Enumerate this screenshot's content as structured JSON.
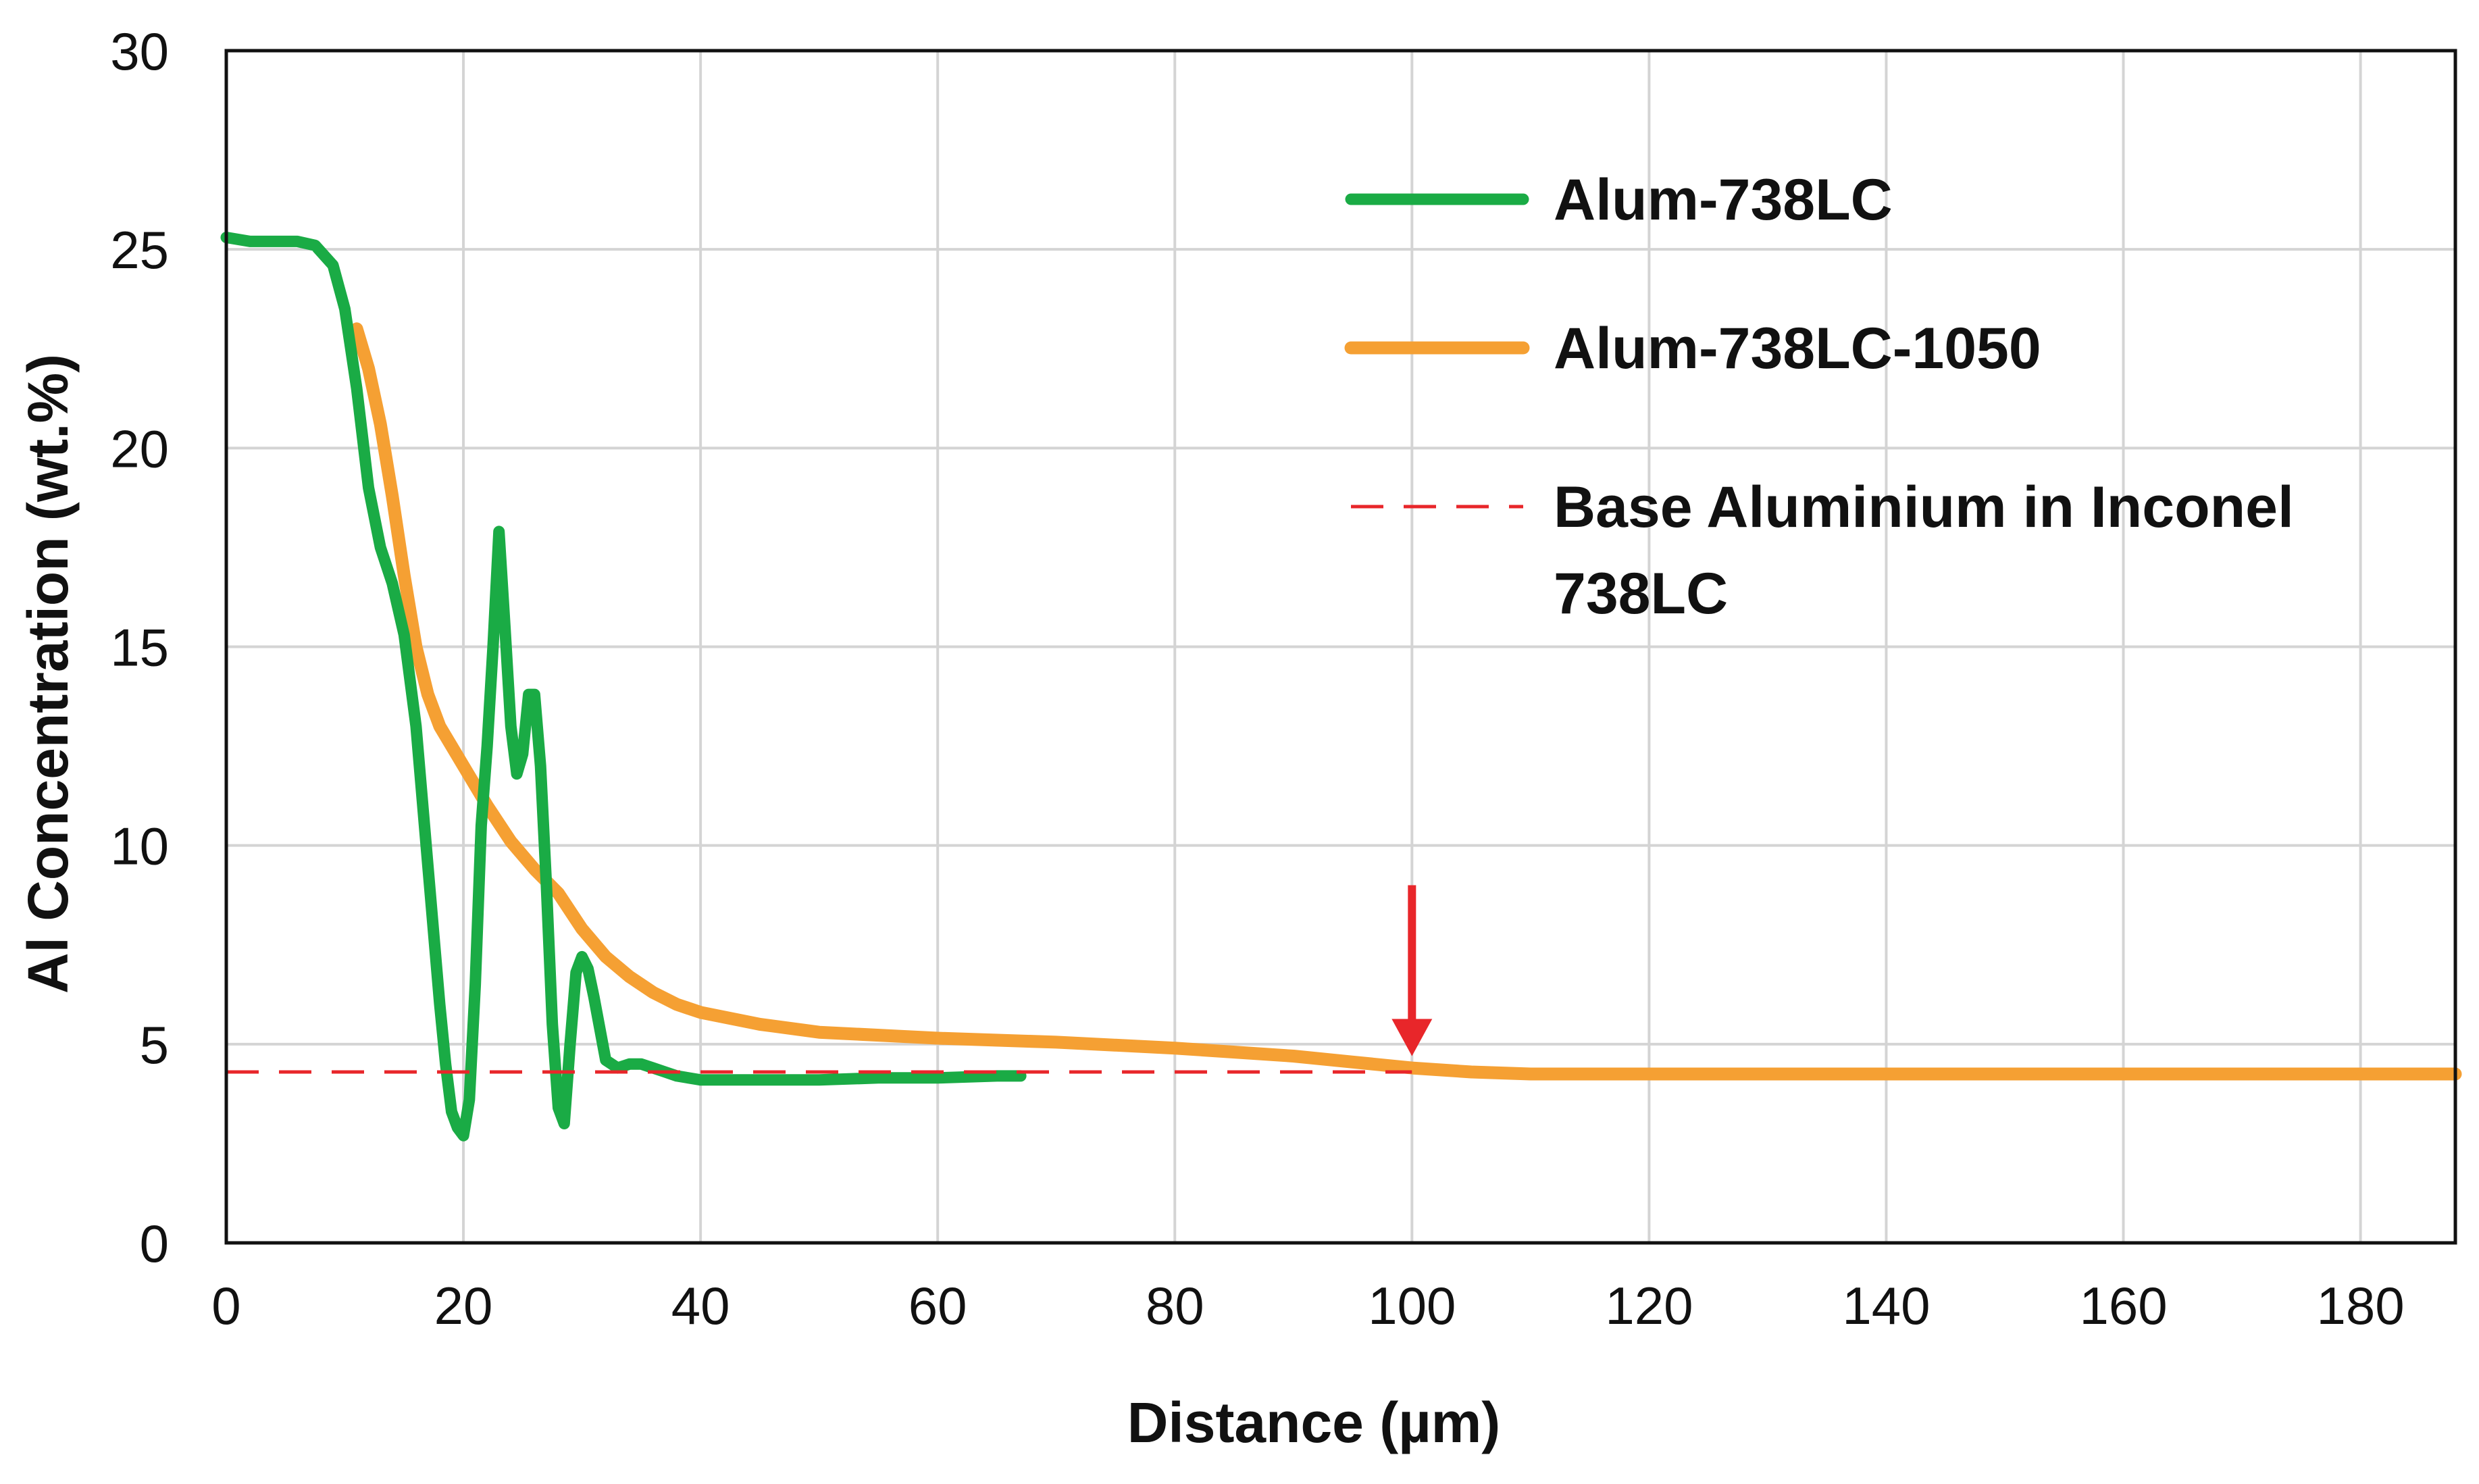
{
  "chart_data": {
    "type": "line",
    "title": "",
    "xlabel": "Distance (µm)",
    "ylabel": "Al Concentration (wt.%)",
    "xlim": [
      0,
      188
    ],
    "ylim": [
      0,
      30
    ],
    "xticks": [
      0,
      20,
      40,
      60,
      80,
      100,
      120,
      140,
      160,
      180
    ],
    "yticks": [
      0,
      5,
      10,
      15,
      20,
      25,
      30
    ],
    "grid": true,
    "legend_position": "top-right",
    "series": [
      {
        "name": "Alum-738LC",
        "color": "#1aab45",
        "style": "solid",
        "x": [
          0,
          2,
          4,
          6,
          7.5,
          9,
          10,
          11,
          12,
          13,
          14,
          15,
          16,
          17,
          18,
          18.5,
          19,
          19.5,
          20,
          20.5,
          21,
          21.5,
          22,
          22.5,
          23,
          23.5,
          24,
          24.5,
          25,
          25.5,
          26,
          26.5,
          27,
          27.5,
          28,
          28.5,
          29,
          29.5,
          30,
          30.5,
          31,
          32,
          33,
          34,
          35,
          36,
          37,
          38,
          40,
          45,
          50,
          55,
          60,
          65,
          67
        ],
        "y": [
          25.3,
          25.2,
          25.2,
          25.2,
          25.1,
          24.6,
          23.5,
          21.5,
          19.0,
          17.5,
          16.6,
          15.3,
          13.0,
          9.5,
          6.0,
          4.5,
          3.3,
          2.9,
          2.7,
          3.6,
          6.5,
          10.5,
          12.5,
          15.0,
          17.9,
          15.5,
          13.0,
          11.8,
          12.3,
          13.8,
          13.8,
          12.0,
          9.0,
          5.5,
          3.4,
          3.0,
          5.0,
          6.8,
          7.2,
          6.9,
          6.2,
          4.6,
          4.4,
          4.5,
          4.5,
          4.4,
          4.3,
          4.2,
          4.1,
          4.1,
          4.1,
          4.15,
          4.15,
          4.2,
          4.2
        ]
      },
      {
        "name": "Alum-738LC-1050",
        "color": "#f5a033",
        "style": "solid",
        "x": [
          11,
          12,
          13,
          14,
          15,
          16,
          17,
          18,
          20,
          22,
          24,
          26,
          28,
          30,
          32,
          34,
          36,
          38,
          40,
          45,
          50,
          60,
          70,
          80,
          90,
          95,
          100,
          105,
          110,
          120,
          140,
          160,
          180,
          188
        ],
        "y": [
          23.0,
          22.0,
          20.6,
          18.8,
          16.8,
          15.0,
          13.8,
          13.0,
          12.0,
          11.0,
          10.1,
          9.4,
          8.8,
          7.9,
          7.2,
          6.7,
          6.3,
          6.0,
          5.8,
          5.5,
          5.3,
          5.15,
          5.05,
          4.9,
          4.7,
          4.55,
          4.4,
          4.3,
          4.25,
          4.25,
          4.25,
          4.25,
          4.25,
          4.25
        ]
      },
      {
        "name": "Base Aluminium in Inconel 738LC",
        "color": "#e8262a",
        "style": "dashed",
        "x": [
          0,
          100
        ],
        "y": [
          4.3,
          4.3
        ]
      }
    ],
    "annotations": [
      {
        "type": "arrow",
        "color": "#e8262a",
        "x": 100,
        "y_from": 9.0,
        "y_to": 4.7
      }
    ]
  }
}
